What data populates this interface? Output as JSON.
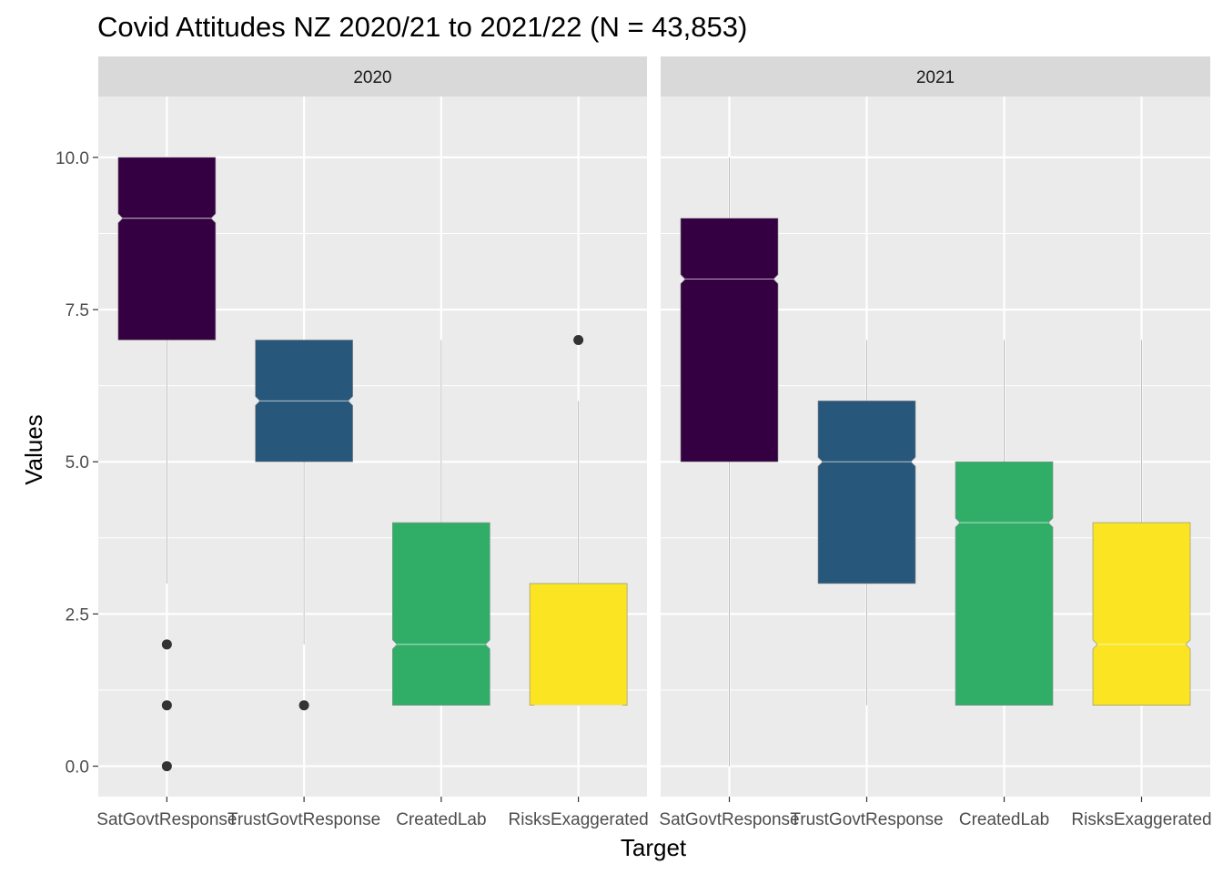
{
  "chart_data": {
    "type": "boxplot",
    "title": "Covid Attitudes NZ 2020/21 to 2021/22 (N = 43,853)",
    "xlabel": "Target",
    "ylabel": "Values",
    "ylim": [
      -0.5,
      11.0
    ],
    "yticks": [
      0.0,
      2.5,
      5.0,
      7.5,
      10.0
    ],
    "ytick_labels": [
      "0.0",
      "2.5",
      "5.0",
      "7.5",
      "10.0"
    ],
    "grid": true,
    "notched": true,
    "categories": [
      "SatGovtResponse",
      "TrustGovtResponse",
      "CreatedLab",
      "RisksExaggerated"
    ],
    "colors": [
      "#340042",
      "#27577B",
      "#30AE68",
      "#FBE421"
    ],
    "panels": [
      {
        "label": "2020",
        "boxes": [
          {
            "category": "SatGovtResponse",
            "lower_whisker": 3,
            "q1": 7,
            "median": 9,
            "q3": 10,
            "upper_whisker": 10,
            "outliers": [
              0,
              1,
              2
            ]
          },
          {
            "category": "TrustGovtResponse",
            "lower_whisker": 2,
            "q1": 5,
            "median": 6,
            "q3": 7,
            "upper_whisker": 7,
            "outliers": [
              1
            ]
          },
          {
            "category": "CreatedLab",
            "lower_whisker": 1,
            "q1": 1,
            "median": 2,
            "q3": 4,
            "upper_whisker": 7,
            "outliers": []
          },
          {
            "category": "RisksExaggerated",
            "lower_whisker": 1,
            "q1": 1,
            "median": 1,
            "q3": 3,
            "upper_whisker": 6,
            "outliers": [
              7
            ]
          }
        ]
      },
      {
        "label": "2021",
        "boxes": [
          {
            "category": "SatGovtResponse",
            "lower_whisker": 0,
            "q1": 5,
            "median": 8,
            "q3": 9,
            "upper_whisker": 10,
            "outliers": []
          },
          {
            "category": "TrustGovtResponse",
            "lower_whisker": 1,
            "q1": 3,
            "median": 5,
            "q3": 6,
            "upper_whisker": 7,
            "outliers": []
          },
          {
            "category": "CreatedLab",
            "lower_whisker": 1,
            "q1": 1,
            "median": 4,
            "q3": 5,
            "upper_whisker": 7,
            "outliers": []
          },
          {
            "category": "RisksExaggerated",
            "lower_whisker": 1,
            "q1": 1,
            "median": 2,
            "q3": 4,
            "upper_whisker": 7,
            "outliers": []
          }
        ]
      }
    ]
  }
}
